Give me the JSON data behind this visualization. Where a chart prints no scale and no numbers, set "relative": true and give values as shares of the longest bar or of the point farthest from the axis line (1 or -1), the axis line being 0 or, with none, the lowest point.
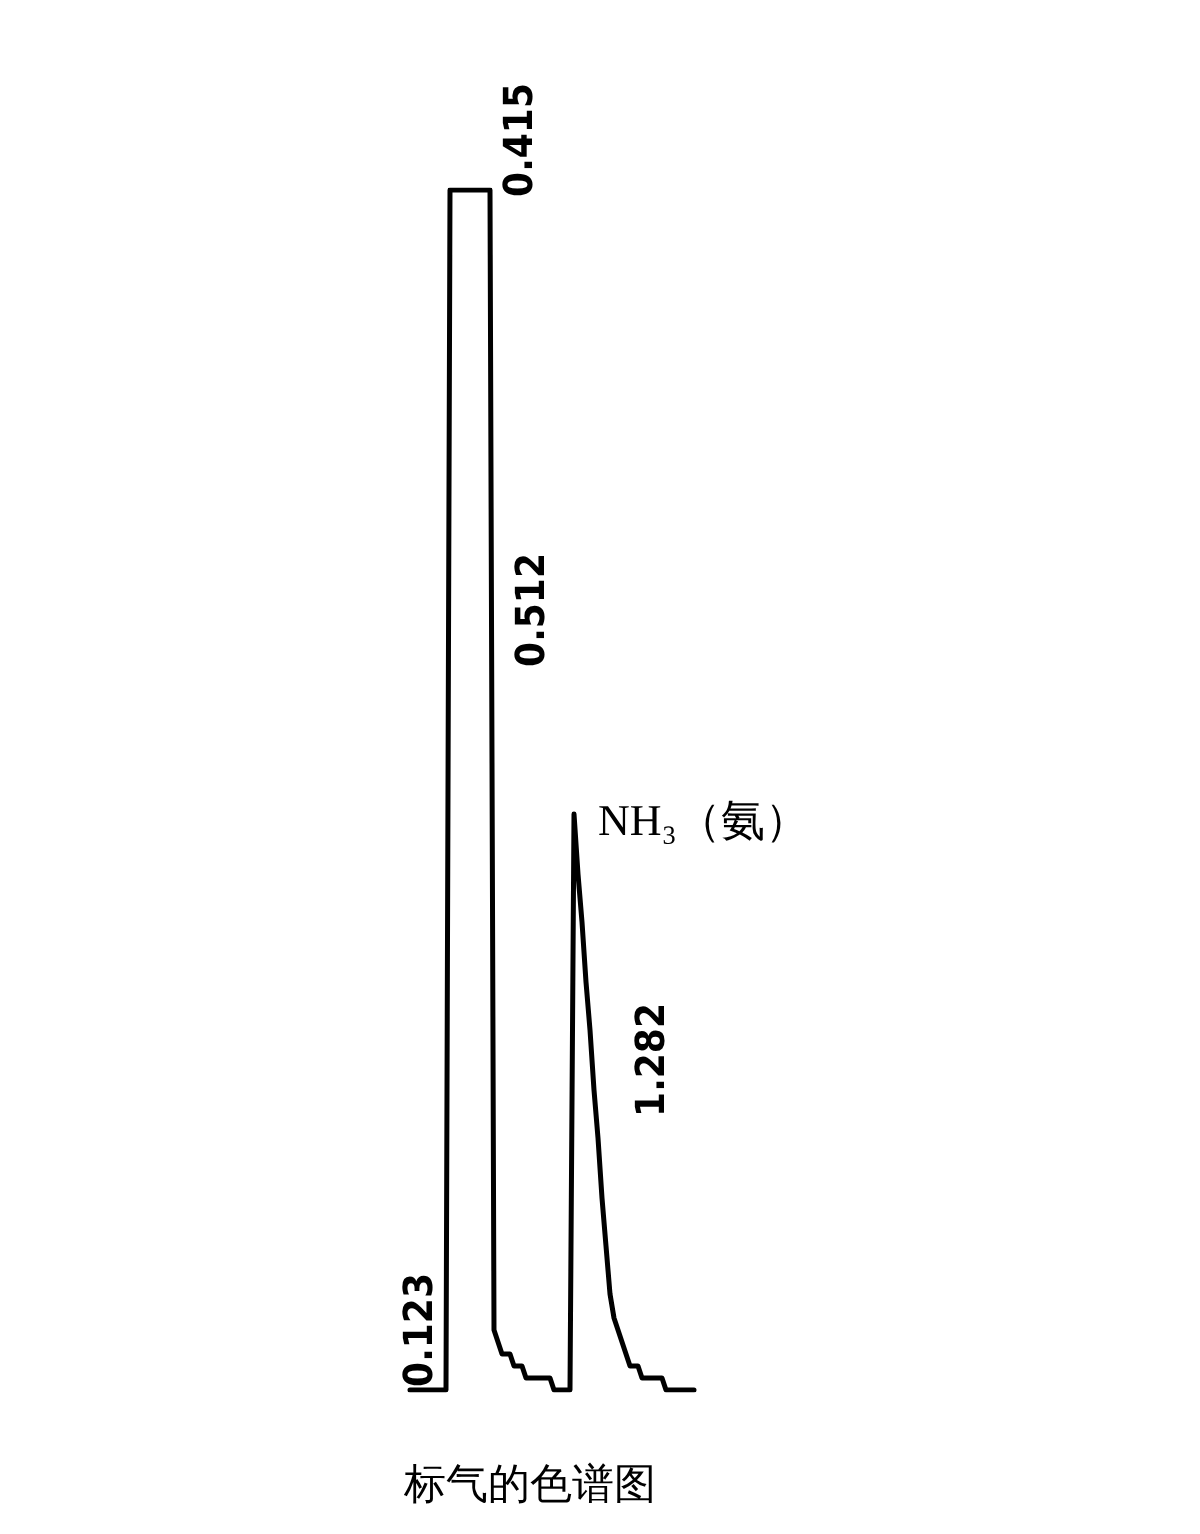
{
  "chart_data": {
    "type": "line",
    "relative": true,
    "title": "标气的色谱图",
    "annotations": [
      "0.123",
      "0.415",
      "0.512",
      "1.282",
      "NH₃（氨）"
    ],
    "categories": [
      null,
      null,
      null,
      null,
      null,
      null,
      null,
      null,
      null,
      null,
      null,
      null,
      null,
      null,
      null,
      null,
      null,
      null,
      null,
      null,
      null,
      null,
      null,
      null,
      null,
      null,
      null,
      null,
      null,
      null,
      null,
      null,
      null,
      null,
      null,
      null,
      null,
      null,
      null,
      null,
      null,
      null,
      null,
      null,
      null,
      null,
      null,
      null,
      null,
      null,
      null,
      null,
      null,
      null,
      null,
      null,
      null,
      null,
      null,
      null,
      null,
      null,
      null,
      null,
      null,
      null,
      null,
      null,
      null,
      null,
      null,
      null
    ],
    "series": [
      {
        "color": "#000000",
        "values": [
          0,
          0,
          0,
          0,
          0,
          0,
          0,
          0,
          0,
          0,
          1,
          1,
          1,
          1,
          1,
          1,
          1,
          1,
          1,
          1,
          1,
          0.05,
          0.04,
          0.03,
          0.03,
          0.03,
          0.02,
          0.02,
          0.02,
          0.01,
          0.01,
          0.01,
          0.01,
          0.01,
          0.01,
          0.01,
          0,
          0,
          0,
          0,
          0,
          0.48,
          0.43,
          0.39,
          0.34,
          0.3,
          0.25,
          0.21,
          0.16,
          0.12,
          0.08,
          0.06,
          0.05,
          0.04,
          0.03,
          0.02,
          0.02,
          0.02,
          0.01,
          0.01,
          0.01,
          0.01,
          0.01,
          0.01,
          0,
          0,
          0,
          0,
          0,
          0,
          0,
          0
        ]
      }
    ],
    "line_style": "solid"
  }
}
